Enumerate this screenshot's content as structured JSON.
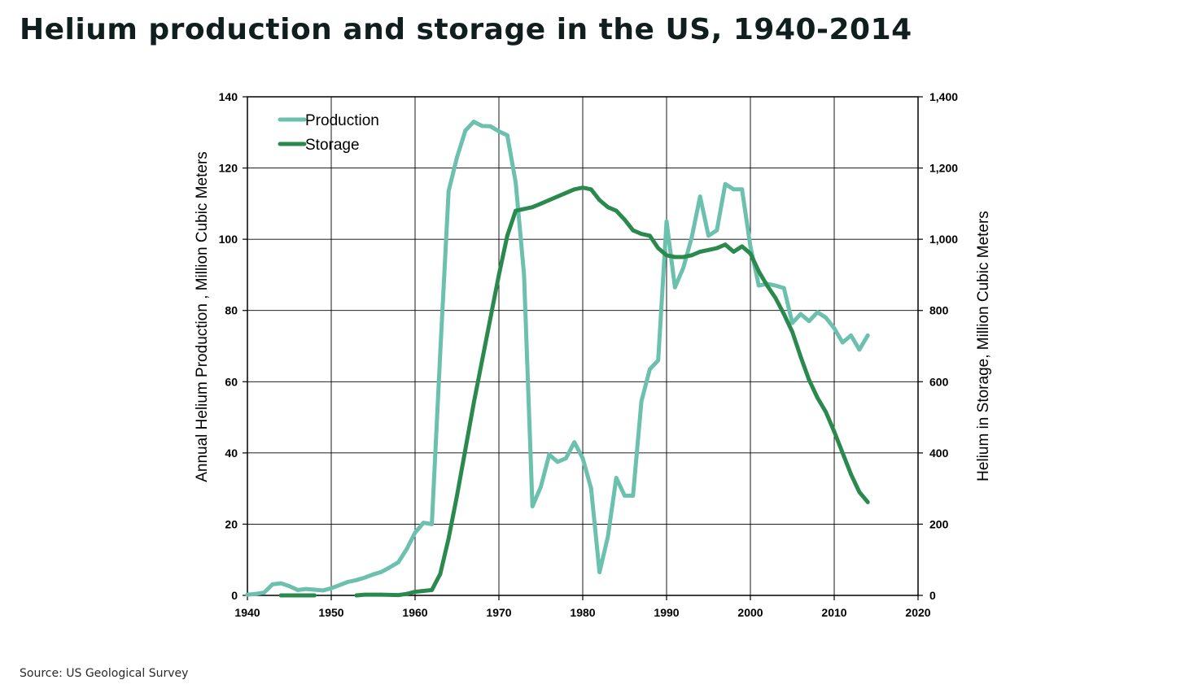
{
  "page": {
    "title": "Helium production and storage in the US, 1940-2014",
    "source": "Source: US Geological Survey"
  },
  "chart_data": {
    "type": "line",
    "title": "Helium production and storage in the US, 1940-2014",
    "xlabel": "",
    "ylabel": "Annual Helium Production , Million Cubic Meters",
    "y2label": "Helium in Storage, Million Cubic Meters",
    "xlim": [
      1940,
      2020
    ],
    "ylim": [
      0,
      140
    ],
    "y2lim": [
      0,
      1400
    ],
    "x_ticks": [
      1940,
      1950,
      1960,
      1970,
      1980,
      1990,
      2000,
      2010,
      2020
    ],
    "y_ticks": [
      "0",
      "20",
      "40",
      "60",
      "80",
      "100",
      "120",
      "140"
    ],
    "y2_ticks": [
      "0",
      "200",
      "400",
      "600",
      "800",
      "1,000",
      "1,200",
      "1,400"
    ],
    "grid": true,
    "legend_position": "top-left",
    "series": [
      {
        "name": "Production",
        "axis": "left",
        "color": "#6cc0ae",
        "points": [
          [
            1940,
            0.2
          ],
          [
            1941,
            0.4
          ],
          [
            1942,
            0.8
          ],
          [
            1943,
            3.1
          ],
          [
            1944,
            3.4
          ],
          [
            1945,
            2.6
          ],
          [
            1946,
            1.5
          ],
          [
            1947,
            1.8
          ],
          [
            1948,
            1.6
          ],
          [
            1949,
            1.4
          ],
          [
            1950,
            2.0
          ],
          [
            1951,
            2.9
          ],
          [
            1952,
            3.8
          ],
          [
            1953,
            4.3
          ],
          [
            1954,
            5.0
          ],
          [
            1955,
            5.9
          ],
          [
            1956,
            6.6
          ],
          [
            1957,
            7.9
          ],
          [
            1958,
            9.3
          ],
          [
            1959,
            13.0
          ],
          [
            1960,
            17.6
          ],
          [
            1961,
            20.4
          ],
          [
            1962,
            20.0
          ],
          [
            1963,
            68.0
          ],
          [
            1964,
            113.5
          ],
          [
            1965,
            123.0
          ],
          [
            1966,
            130.5
          ],
          [
            1967,
            133.0
          ],
          [
            1968,
            131.8
          ],
          [
            1969,
            131.7
          ],
          [
            1970,
            130.3
          ],
          [
            1971,
            129.2
          ],
          [
            1972,
            116.0
          ],
          [
            1973,
            90.0
          ],
          [
            1974,
            25.0
          ],
          [
            1975,
            30.5
          ],
          [
            1976,
            39.5
          ],
          [
            1977,
            37.5
          ],
          [
            1978,
            38.5
          ],
          [
            1979,
            43.0
          ],
          [
            1980,
            38.5
          ],
          [
            1981,
            30.0
          ],
          [
            1982,
            6.5
          ],
          [
            1983,
            16.5
          ],
          [
            1984,
            33.0
          ],
          [
            1985,
            28.0
          ],
          [
            1986,
            28.0
          ],
          [
            1987,
            54.5
          ],
          [
            1988,
            63.5
          ],
          [
            1989,
            66.0
          ],
          [
            1990,
            105.0
          ],
          [
            1991,
            86.5
          ],
          [
            1992,
            92.0
          ],
          [
            1993,
            100.5
          ],
          [
            1994,
            112.0
          ],
          [
            1995,
            101.0
          ],
          [
            1996,
            102.5
          ],
          [
            1997,
            115.5
          ],
          [
            1998,
            114.0
          ],
          [
            1999,
            114.0
          ],
          [
            2000,
            98.0
          ],
          [
            2001,
            87.0
          ],
          [
            2002,
            87.5
          ],
          [
            2003,
            87.0
          ],
          [
            2004,
            86.3
          ],
          [
            2005,
            76.5
          ],
          [
            2006,
            79.0
          ],
          [
            2007,
            77.0
          ],
          [
            2008,
            79.5
          ],
          [
            2009,
            78.0
          ],
          [
            2010,
            75.0
          ],
          [
            2011,
            71.0
          ],
          [
            2012,
            73.0
          ],
          [
            2013,
            69.0
          ],
          [
            2014,
            73.0
          ]
        ]
      },
      {
        "name": "Storage",
        "axis": "right",
        "color": "#2a8a4e",
        "segments": [
          [
            [
              1944,
              0
            ],
            [
              1948,
              0
            ]
          ],
          [
            [
              1953,
              0
            ],
            [
              1954,
              2
            ],
            [
              1956,
              2
            ],
            [
              1958,
              1
            ],
            [
              1959,
              4
            ],
            [
              1960,
              10
            ],
            [
              1962,
              15
            ],
            [
              1963,
              60
            ],
            [
              1964,
              160
            ],
            [
              1965,
              280
            ],
            [
              1966,
              410
            ],
            [
              1967,
              540
            ],
            [
              1968,
              660
            ],
            [
              1969,
              780
            ],
            [
              1970,
              900
            ],
            [
              1971,
              1010
            ],
            [
              1972,
              1080
            ],
            [
              1973,
              1085
            ],
            [
              1974,
              1090
            ],
            [
              1975,
              1100
            ],
            [
              1976,
              1110
            ],
            [
              1977,
              1120
            ],
            [
              1978,
              1130
            ],
            [
              1979,
              1140
            ],
            [
              1980,
              1145
            ],
            [
              1981,
              1140
            ],
            [
              1982,
              1110
            ],
            [
              1983,
              1090
            ],
            [
              1984,
              1080
            ],
            [
              1985,
              1055
            ],
            [
              1986,
              1025
            ],
            [
              1987,
              1015
            ],
            [
              1988,
              1010
            ],
            [
              1989,
              975
            ],
            [
              1990,
              955
            ],
            [
              1991,
              950
            ],
            [
              1992,
              950
            ],
            [
              1993,
              955
            ],
            [
              1994,
              965
            ],
            [
              1995,
              970
            ],
            [
              1996,
              975
            ],
            [
              1997,
              985
            ],
            [
              1998,
              965
            ],
            [
              1999,
              980
            ],
            [
              2000,
              960
            ],
            [
              2001,
              910
            ],
            [
              2002,
              870
            ],
            [
              2003,
              835
            ],
            [
              2004,
              790
            ],
            [
              2005,
              740
            ],
            [
              2006,
              670
            ],
            [
              2007,
              605
            ],
            [
              2008,
              555
            ],
            [
              2009,
              515
            ],
            [
              2010,
              460
            ],
            [
              2011,
              400
            ],
            [
              2012,
              340
            ],
            [
              2013,
              290
            ],
            [
              2014,
              262
            ]
          ]
        ]
      }
    ]
  }
}
